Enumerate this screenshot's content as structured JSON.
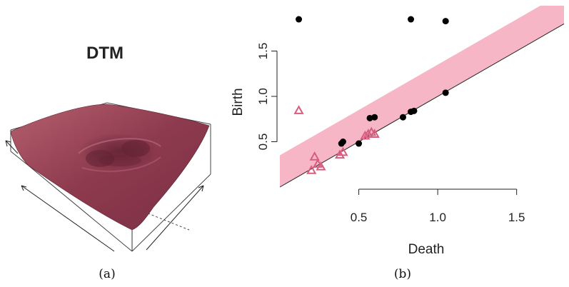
{
  "panel_a": {
    "title": "DTM",
    "caption": "(a)",
    "surface_color": "#8e3a4e"
  },
  "panel_b": {
    "caption": "(b)",
    "chart_data": {
      "type": "scatter",
      "xlabel": "Death",
      "ylabel": "Birth",
      "x_ticks": [
        "0.5",
        "1.0",
        "1.5"
      ],
      "y_ticks": [
        "0.5",
        "1.0",
        "1.5"
      ],
      "xlim": [
        0.0,
        1.8
      ],
      "ylim": [
        0.0,
        2.0
      ],
      "diagonal": true,
      "band": {
        "width": 0.35,
        "color": "#f6b6c6"
      },
      "series": [
        {
          "marker": "circle",
          "color": "#000000",
          "points": [
            [
              0.12,
              1.85
            ],
            [
              0.83,
              1.85
            ],
            [
              1.05,
              1.83
            ],
            [
              0.4,
              0.5
            ],
            [
              0.39,
              0.48
            ],
            [
              0.5,
              0.48
            ],
            [
              0.57,
              0.76
            ],
            [
              0.6,
              0.77
            ],
            [
              0.78,
              0.77
            ],
            [
              0.83,
              0.83
            ],
            [
              0.85,
              0.84
            ],
            [
              1.05,
              1.04
            ]
          ]
        },
        {
          "marker": "triangle",
          "color": "#d75c7e",
          "points": [
            [
              0.12,
              0.84
            ],
            [
              0.22,
              0.33
            ],
            [
              0.24,
              0.25
            ],
            [
              0.2,
              0.18
            ],
            [
              0.26,
              0.22
            ],
            [
              0.38,
              0.35
            ],
            [
              0.4,
              0.38
            ],
            [
              0.54,
              0.56
            ],
            [
              0.56,
              0.58
            ],
            [
              0.58,
              0.6
            ],
            [
              0.6,
              0.58
            ]
          ]
        }
      ]
    }
  }
}
